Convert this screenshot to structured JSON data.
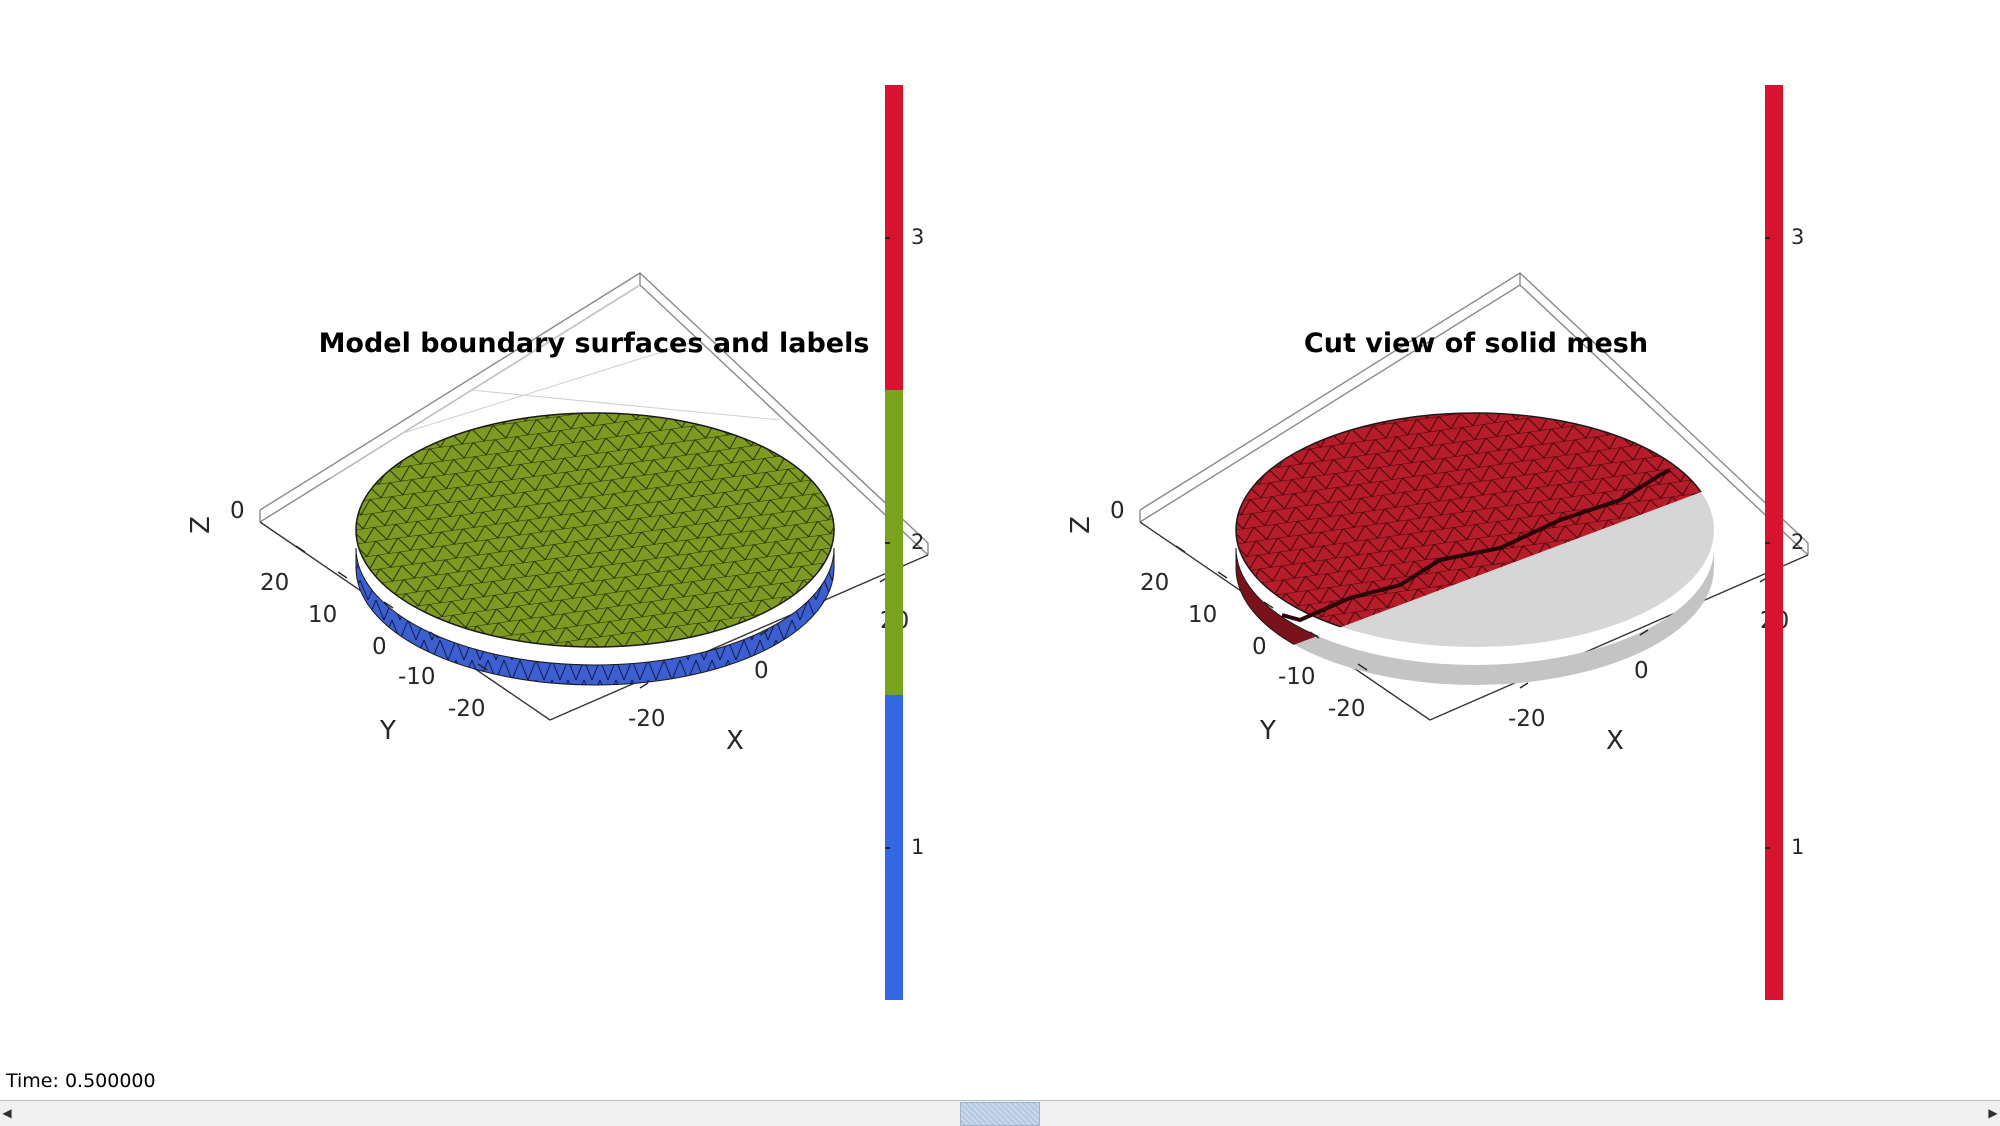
{
  "status": {
    "time_label": "Time: 0.500000"
  },
  "axes": [
    {
      "title": "Model boundary surfaces and labels",
      "x_label": "X",
      "y_label": "Y",
      "z_label": "Z",
      "x_ticks": [
        "-20",
        "0",
        "20"
      ],
      "y_ticks": [
        "20",
        "10",
        "0",
        "-10",
        "-20"
      ],
      "z_ticks": [
        "0"
      ],
      "colorbar": {
        "ticks": [
          "1",
          "2",
          "3"
        ],
        "colors": [
          "#3468e3",
          "#78a31e",
          "#d6142d"
        ]
      },
      "colors": {
        "top_face": "#7f9a22",
        "side_face": "#3c5fd0",
        "edge": "#1a1a1a"
      }
    },
    {
      "title": "Cut view of solid mesh",
      "x_label": "X",
      "y_label": "Y",
      "z_label": "Z",
      "x_ticks": [
        "-20",
        "0",
        "20"
      ],
      "y_ticks": [
        "20",
        "10",
        "0",
        "-10",
        "-20"
      ],
      "z_ticks": [
        "0"
      ],
      "colorbar": {
        "ticks": [
          "1",
          "2",
          "3"
        ],
        "colors": [
          "#d6142d",
          "#d6142d",
          "#d6142d"
        ]
      },
      "colors": {
        "solid": "#b71c2a",
        "ghost": "#cfcfcf",
        "edge": "#1a1a1a"
      }
    }
  ],
  "scrollbar": {
    "left_arrow": "◀",
    "right_arrow": "▶"
  }
}
